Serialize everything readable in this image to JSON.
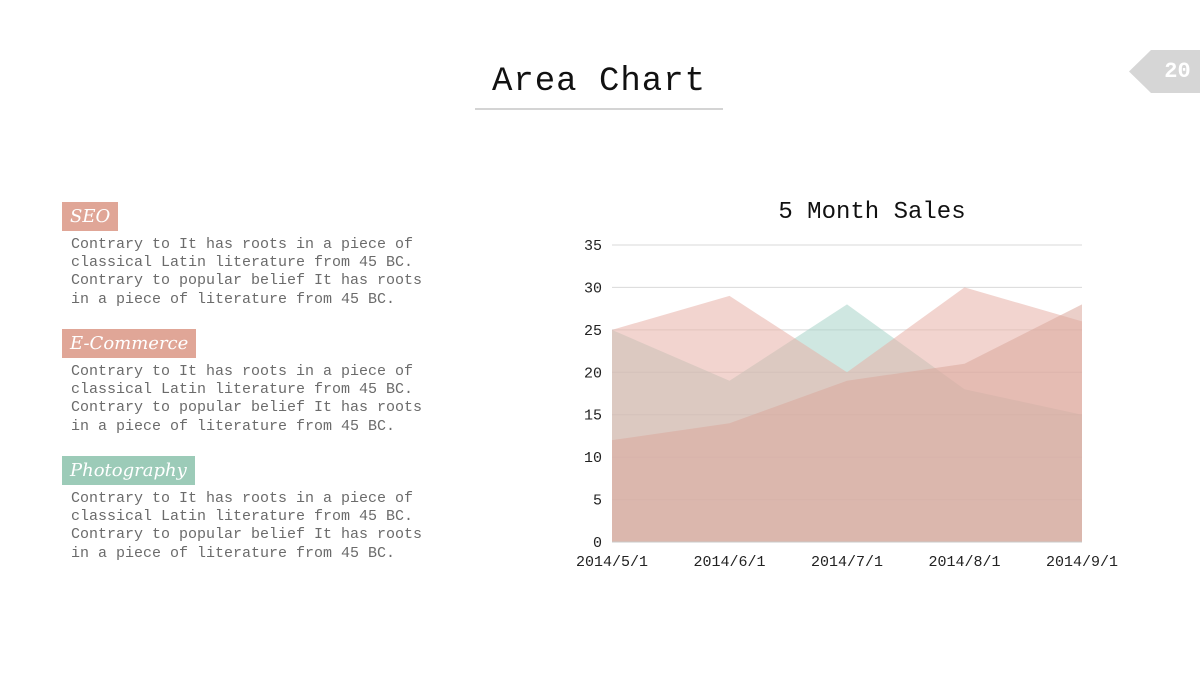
{
  "slide": {
    "title": "Area Chart",
    "page_number": "20"
  },
  "sections": [
    {
      "tag": "SEO",
      "color": "#e0a697",
      "text": "Contrary to It has roots in a piece of classical Latin literature from 45 BC. Contrary to popular belief It has roots in a piece of literature from 45 BC."
    },
    {
      "tag": "E-Commerce",
      "color": "#e0a697",
      "text": "Contrary to It has roots in a piece of classical Latin literature from 45 BC. Contrary to popular belief It has roots in a piece of literature from 45 BC."
    },
    {
      "tag": "Photography",
      "color": "#9ccbb8",
      "text": "Contrary to It has roots in a piece of classical Latin literature from 45 BC. Contrary to popular belief It has roots in a piece of literature from 45 BC."
    }
  ],
  "chart_data": {
    "type": "area",
    "title": "5 Month Sales",
    "categories": [
      "2014/5/1",
      "2014/6/1",
      "2014/7/1",
      "2014/8/1",
      "2014/9/1"
    ],
    "ylim": [
      0,
      35
    ],
    "yticks": [
      0,
      5,
      10,
      15,
      20,
      25,
      30,
      35
    ],
    "grid": true,
    "series": [
      {
        "values": [
          25,
          19,
          28,
          18,
          15
        ],
        "color": "#a8d4c9"
      },
      {
        "values": [
          25,
          29,
          20,
          30,
          26
        ],
        "color": "#e8b0a8"
      },
      {
        "values": [
          12,
          14,
          19,
          21,
          28
        ],
        "color": "#dba89c"
      }
    ]
  }
}
